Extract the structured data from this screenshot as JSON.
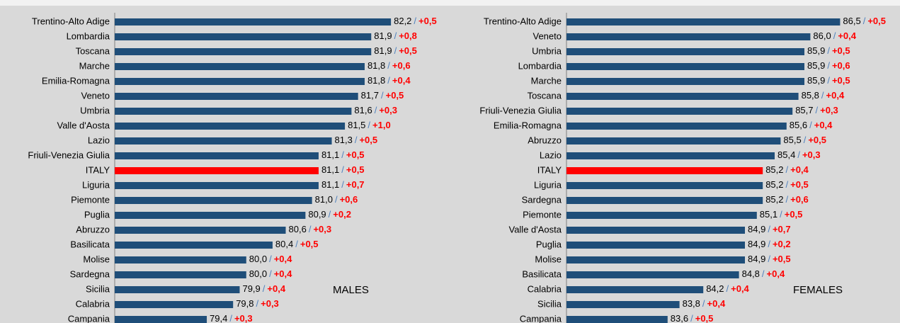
{
  "chart_data": [
    {
      "type": "bar",
      "annotation": "MALES",
      "separator": "/",
      "categories": [
        "Trentino-Alto Adige",
        "Lombardia",
        "Toscana",
        "Marche",
        "Emilia-Romagna",
        "Veneto",
        "Umbria",
        "Valle d'Aosta",
        "Lazio",
        "Friuli-Venezia Giulia",
        "ITALY",
        "Liguria",
        "Piemonte",
        "Puglia",
        "Abruzzo",
        "Basilicata",
        "Molise",
        "Sardegna",
        "Sicilia",
        "Calabria",
        "Campania"
      ],
      "values": [
        82.2,
        81.9,
        81.9,
        81.8,
        81.8,
        81.7,
        81.6,
        81.5,
        81.3,
        81.1,
        81.1,
        81.1,
        81.0,
        80.9,
        80.6,
        80.4,
        80.0,
        80.0,
        79.9,
        79.8,
        79.4
      ],
      "value_labels": [
        "82,2",
        "81,9",
        "81,9",
        "81,8",
        "81,8",
        "81,7",
        "81,6",
        "81,5",
        "81,3",
        "81,1",
        "81,1",
        "81,1",
        "81,0",
        "80,9",
        "80,6",
        "80,4",
        "80,0",
        "80,0",
        "79,9",
        "79,8",
        "79,4"
      ],
      "changes": [
        0.5,
        0.8,
        0.5,
        0.6,
        0.4,
        0.5,
        0.3,
        1.0,
        0.5,
        0.5,
        0.5,
        0.7,
        0.6,
        0.2,
        0.3,
        0.5,
        0.4,
        0.4,
        0.4,
        0.3,
        0.3
      ],
      "change_labels": [
        "+0,5",
        "+0,8",
        "+0,5",
        "+0,6",
        "+0,4",
        "+0,5",
        "+0,3",
        "+1,0",
        "+0,5",
        "+0,5",
        "+0,5",
        "+0,7",
        "+0,6",
        "+0,2",
        "+0,3",
        "+0,5",
        "+0,4",
        "+0,4",
        "+0,4",
        "+0,3",
        "+0,3"
      ],
      "colors": [
        "#1f4e79",
        "#1f4e79",
        "#1f4e79",
        "#1f4e79",
        "#1f4e79",
        "#1f4e79",
        "#1f4e79",
        "#1f4e79",
        "#1f4e79",
        "#1f4e79",
        "#ff0000",
        "#1f4e79",
        "#1f4e79",
        "#1f4e79",
        "#1f4e79",
        "#1f4e79",
        "#1f4e79",
        "#1f4e79",
        "#1f4e79",
        "#1f4e79",
        "#1f4e79"
      ],
      "xlim": [
        78,
        83.2
      ]
    },
    {
      "type": "bar",
      "annotation": "FEMALES",
      "separator": "/",
      "categories": [
        "Trentino-Alto Adige",
        "Veneto",
        "Umbria",
        "Lombardia",
        "Marche",
        "Toscana",
        "Friuli-Venezia Giulia",
        "Emilia-Romagna",
        "Abruzzo",
        "Lazio",
        "ITALY",
        "Liguria",
        "Sardegna",
        "Piemonte",
        "Valle d'Aosta",
        "Puglia",
        "Molise",
        "Basilicata",
        "Calabria",
        "Sicilia",
        "Campania"
      ],
      "values": [
        86.5,
        86.0,
        85.9,
        85.9,
        85.9,
        85.8,
        85.7,
        85.6,
        85.5,
        85.4,
        85.2,
        85.2,
        85.2,
        85.1,
        84.9,
        84.9,
        84.9,
        84.8,
        84.2,
        83.8,
        83.6
      ],
      "value_labels": [
        "86,5",
        "86,0",
        "85,9",
        "85,9",
        "85,9",
        "85,8",
        "85,7",
        "85,6",
        "85,5",
        "85,4",
        "85,2",
        "85,2",
        "85,2",
        "85,1",
        "84,9",
        "84,9",
        "84,9",
        "84,8",
        "84,2",
        "83,8",
        "83,6"
      ],
      "changes": [
        0.5,
        0.4,
        0.5,
        0.6,
        0.5,
        0.4,
        0.3,
        0.4,
        0.5,
        0.3,
        0.4,
        0.5,
        0.6,
        0.5,
        0.7,
        0.2,
        0.5,
        0.4,
        0.4,
        0.4,
        0.5
      ],
      "change_labels": [
        "+0,5",
        "+0,4",
        "+0,5",
        "+0,6",
        "+0,5",
        "+0,4",
        "+0,3",
        "+0,4",
        "+0,5",
        "+0,3",
        "+0,4",
        "+0,5",
        "+0,6",
        "+0,5",
        "+0,7",
        "+0,2",
        "+0,5",
        "+0,4",
        "+0,4",
        "+0,4",
        "+0,5"
      ],
      "colors": [
        "#1f4e79",
        "#1f4e79",
        "#1f4e79",
        "#1f4e79",
        "#1f4e79",
        "#1f4e79",
        "#1f4e79",
        "#1f4e79",
        "#1f4e79",
        "#1f4e79",
        "#ff0000",
        "#1f4e79",
        "#1f4e79",
        "#1f4e79",
        "#1f4e79",
        "#1f4e79",
        "#1f4e79",
        "#1f4e79",
        "#1f4e79",
        "#1f4e79",
        "#1f4e79"
      ],
      "xlim": [
        81.9,
        87.4
      ]
    }
  ]
}
